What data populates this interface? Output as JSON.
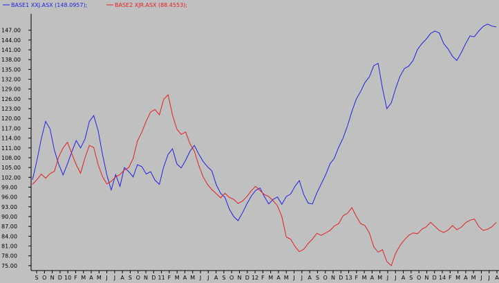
{
  "legend": [
    {
      "label": "BASE1 XXJ.ASX (148.0957);",
      "color": "#2020e0"
    },
    {
      "label": "BASE2 XJR.ASX (88.4553);",
      "color": "#e02020"
    }
  ],
  "chart_data": {
    "type": "line",
    "title": "",
    "xlabel": "",
    "ylabel": "",
    "ylim": [
      73.5,
      152
    ],
    "grid": false,
    "legend_position": "top-left",
    "y_ticks": [
      "75.00",
      "78.00",
      "81.00",
      "84.00",
      "87.00",
      "90.00",
      "93.00",
      "96.00",
      "99.00",
      "102.00",
      "105.00",
      "108.00",
      "111.00",
      "114.00",
      "117.00",
      "120.00",
      "123.00",
      "126.00",
      "129.00",
      "132.00",
      "135.00",
      "138.00",
      "141.00",
      "144.00",
      "147.00"
    ],
    "x_labels": [
      "S",
      "O",
      "N",
      "D",
      "10",
      "F",
      "M",
      "A",
      "M",
      "J",
      "J",
      "A",
      "S",
      "O",
      "N",
      "D",
      "11",
      "F",
      "M",
      "A",
      "M",
      "J",
      "J",
      "A",
      "S",
      "O",
      "N",
      "D",
      "12",
      "F",
      "M",
      "A",
      "M",
      "J",
      "J",
      "A",
      "S",
      "O",
      "N",
      "D",
      "13",
      "F",
      "M",
      "A",
      "M",
      "J",
      "J",
      "A",
      "S",
      "O",
      "N",
      "D",
      "14",
      "F",
      "M",
      "A",
      "M",
      "J",
      "J",
      "A"
    ],
    "series": [
      {
        "name": "BASE1 XXJ.ASX (148.0957);",
        "color": "#2020e0",
        "values": [
          101,
          107,
          114,
          119,
          117,
          110,
          106,
          103,
          106,
          110,
          113,
          111,
          114,
          119,
          121,
          116,
          109,
          103,
          98,
          103,
          99,
          105,
          104,
          102,
          106,
          105,
          103,
          104,
          101,
          100,
          105,
          109,
          111,
          106,
          105,
          107,
          110,
          112,
          109,
          107,
          105,
          104,
          100,
          97,
          96,
          92,
          90,
          89,
          91,
          94,
          96,
          98,
          99,
          96,
          94,
          95,
          96,
          94,
          96,
          97,
          99,
          101,
          97,
          94,
          94,
          97,
          100,
          103,
          106,
          108,
          111,
          114,
          118,
          122,
          126,
          128,
          131,
          133,
          136,
          137,
          129,
          123,
          125,
          129,
          133,
          135,
          136,
          138,
          141,
          143,
          144,
          146,
          147,
          146,
          143,
          141,
          139,
          138,
          140,
          143,
          145,
          145,
          147,
          148,
          149,
          148,
          148
        ]
      },
      {
        "name": "BASE2 XJR.ASX (88.4553);",
        "color": "#e02020",
        "values": [
          100,
          101,
          103,
          102,
          103,
          104,
          108,
          111,
          113,
          109,
          106,
          103,
          108,
          112,
          111,
          106,
          102,
          100,
          101,
          102,
          103,
          104,
          105,
          108,
          113,
          116,
          119,
          122,
          123,
          121,
          126,
          127,
          121,
          117,
          115,
          116,
          112,
          110,
          106,
          102,
          100,
          98,
          97,
          96,
          97,
          96,
          95,
          94,
          95,
          96,
          98,
          99,
          98,
          97,
          96,
          95,
          93,
          90,
          84,
          83,
          81,
          79,
          80,
          82,
          83,
          85,
          84,
          85,
          86,
          87,
          88,
          90,
          91,
          93,
          90,
          88,
          87,
          85,
          81,
          79,
          80,
          76,
          75,
          79,
          81,
          83,
          84,
          85,
          85,
          86,
          87,
          88,
          87,
          86,
          85,
          86,
          87,
          86,
          87,
          88,
          89,
          89,
          87,
          86,
          86,
          87,
          88
        ]
      }
    ]
  }
}
